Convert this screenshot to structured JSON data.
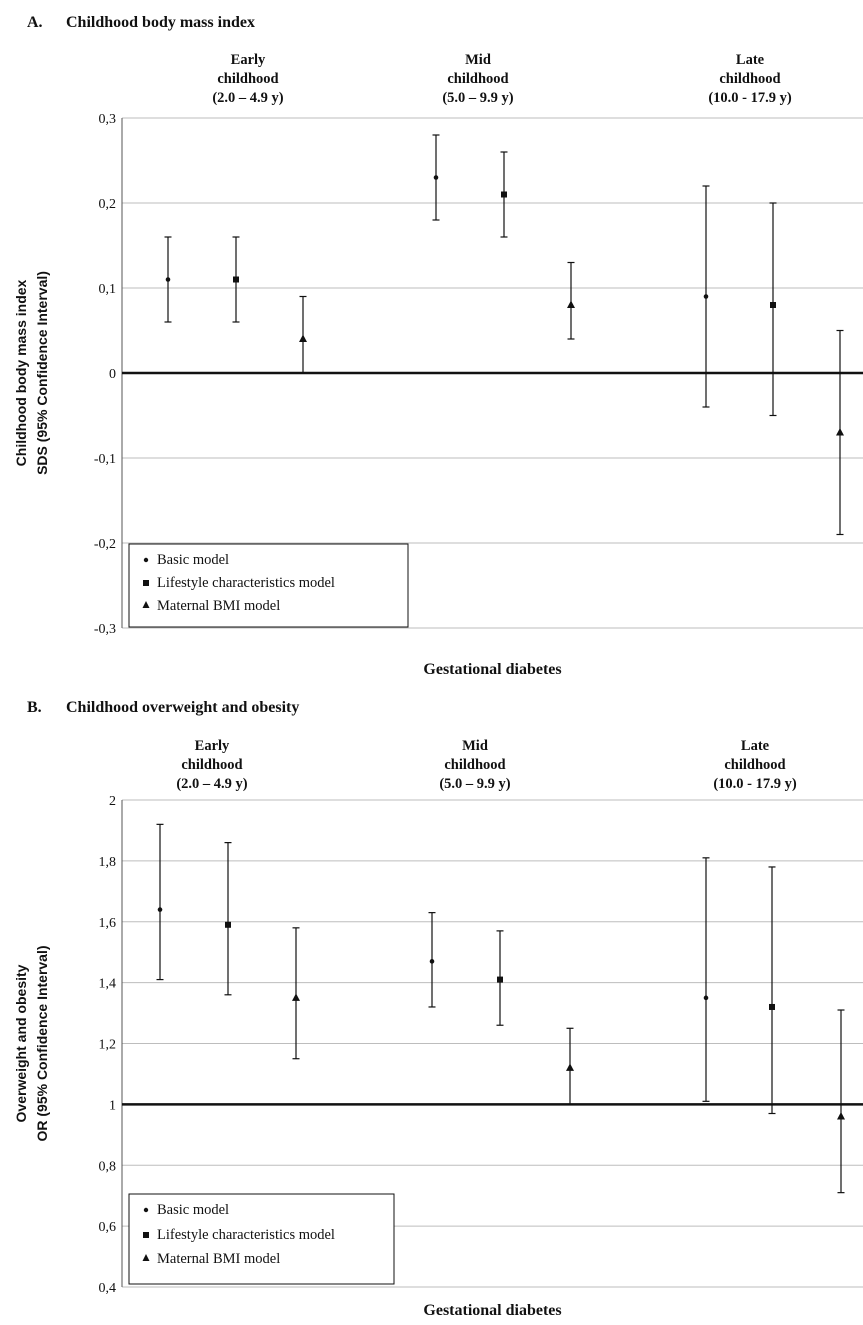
{
  "chart_data": [
    {
      "panel_label": "A.",
      "title": "Childhood body mass index",
      "type": "scatter",
      "ylabel_lines": [
        "Childhood body mass index",
        "SDS (95% Confidence Interval)"
      ],
      "xlabel": "Gestational diabetes",
      "ylim": [
        -0.3,
        0.3
      ],
      "yticks": [
        -0.3,
        -0.2,
        -0.1,
        0,
        0.1,
        0.2,
        0.3
      ],
      "ytick_labels": [
        "-0,3",
        "-0,2",
        "-0,1",
        "0",
        "0,1",
        "0,2",
        "0,3"
      ],
      "reference_line": 0,
      "grid": true,
      "legend_position": "bottom-left",
      "groups": [
        {
          "lines": [
            "Early",
            "childhood",
            "(2.0 – 4.9 y)"
          ]
        },
        {
          "lines": [
            "Mid",
            "childhood",
            "(5.0 – 9.9 y)"
          ]
        },
        {
          "lines": [
            "Late",
            "childhood",
            "(10.0 - 17.9 y)"
          ]
        }
      ],
      "series": [
        {
          "name": "Basic model",
          "marker": "circle",
          "estimate": [
            0.11,
            0.23,
            0.09
          ],
          "lower": [
            0.06,
            0.18,
            -0.04
          ],
          "upper": [
            0.16,
            0.28,
            0.22
          ]
        },
        {
          "name": "Lifestyle characteristics model",
          "marker": "square",
          "estimate": [
            0.11,
            0.21,
            0.08
          ],
          "lower": [
            0.06,
            0.16,
            -0.05
          ],
          "upper": [
            0.16,
            0.26,
            0.2
          ]
        },
        {
          "name": "Maternal BMI model",
          "marker": "triangle",
          "estimate": [
            0.04,
            0.08,
            -0.07
          ],
          "lower": [
            0.0,
            0.04,
            -0.19
          ],
          "upper": [
            0.09,
            0.13,
            0.05
          ]
        }
      ]
    },
    {
      "panel_label": "B.",
      "title": "Childhood overweight and obesity",
      "type": "scatter",
      "ylabel_lines": [
        "Overweight and obesity",
        "OR (95% Confidence Interval)"
      ],
      "xlabel": "Gestational diabetes",
      "ylim": [
        0.4,
        2.0
      ],
      "yticks": [
        0.4,
        0.6,
        0.8,
        1.0,
        1.2,
        1.4,
        1.6,
        1.8,
        2.0
      ],
      "ytick_labels": [
        "0,4",
        "0,6",
        "0,8",
        "1",
        "1,2",
        "1,4",
        "1,6",
        "1,8",
        "2"
      ],
      "reference_line": 1,
      "grid": true,
      "legend_position": "bottom-left",
      "groups": [
        {
          "lines": [
            "Early",
            "childhood",
            "(2.0 – 4.9 y)"
          ]
        },
        {
          "lines": [
            "Mid",
            "childhood",
            "(5.0 – 9.9 y)"
          ]
        },
        {
          "lines": [
            "Late",
            "childhood",
            "(10.0 - 17.9 y)"
          ]
        }
      ],
      "series": [
        {
          "name": "Basic model",
          "marker": "circle",
          "estimate": [
            1.64,
            1.47,
            1.35
          ],
          "lower": [
            1.41,
            1.32,
            1.01
          ],
          "upper": [
            1.92,
            1.63,
            1.81
          ]
        },
        {
          "name": "Lifestyle characteristics model",
          "marker": "square",
          "estimate": [
            1.59,
            1.41,
            1.32
          ],
          "lower": [
            1.36,
            1.26,
            0.97
          ],
          "upper": [
            1.86,
            1.57,
            1.78
          ]
        },
        {
          "name": "Maternal BMI model",
          "marker": "triangle",
          "estimate": [
            1.35,
            1.12,
            0.96
          ],
          "lower": [
            1.15,
            1.0,
            0.71
          ],
          "upper": [
            1.58,
            1.25,
            1.31
          ]
        }
      ]
    }
  ],
  "colors": {
    "ink": "#111111",
    "grid": "#bdbdbd",
    "background": "#ffffff"
  }
}
